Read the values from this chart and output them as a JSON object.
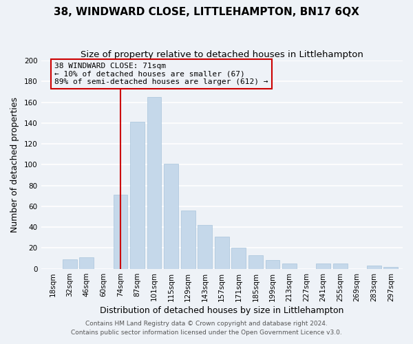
{
  "title": "38, WINDWARD CLOSE, LITTLEHAMPTON, BN17 6QX",
  "subtitle": "Size of property relative to detached houses in Littlehampton",
  "xlabel": "Distribution of detached houses by size in Littlehampton",
  "ylabel": "Number of detached properties",
  "bar_color": "#c5d8ea",
  "bar_edge_color": "#a8c4db",
  "categories": [
    "18sqm",
    "32sqm",
    "46sqm",
    "60sqm",
    "74sqm",
    "87sqm",
    "101sqm",
    "115sqm",
    "129sqm",
    "143sqm",
    "157sqm",
    "171sqm",
    "185sqm",
    "199sqm",
    "213sqm",
    "227sqm",
    "241sqm",
    "255sqm",
    "269sqm",
    "283sqm",
    "297sqm"
  ],
  "values": [
    0,
    9,
    11,
    0,
    71,
    141,
    165,
    101,
    56,
    42,
    31,
    20,
    13,
    8,
    5,
    0,
    5,
    5,
    0,
    3,
    2
  ],
  "ylim": [
    0,
    200
  ],
  "yticks": [
    0,
    20,
    40,
    60,
    80,
    100,
    120,
    140,
    160,
    180,
    200
  ],
  "marker_bar_index": 4,
  "marker_label_line1": "38 WINDWARD CLOSE: 71sqm",
  "marker_label_line2": "← 10% of detached houses are smaller (67)",
  "marker_label_line3": "89% of semi-detached houses are larger (612) →",
  "vline_color": "#cc0000",
  "annotation_box_edge": "#cc0000",
  "footer1": "Contains HM Land Registry data © Crown copyright and database right 2024.",
  "footer2": "Contains public sector information licensed under the Open Government Licence v3.0.",
  "background_color": "#eef2f7",
  "grid_color": "#ffffff",
  "title_fontsize": 11,
  "subtitle_fontsize": 9.5,
  "axis_label_fontsize": 9,
  "tick_fontsize": 7.5,
  "annotation_fontsize": 8,
  "footer_fontsize": 6.5
}
